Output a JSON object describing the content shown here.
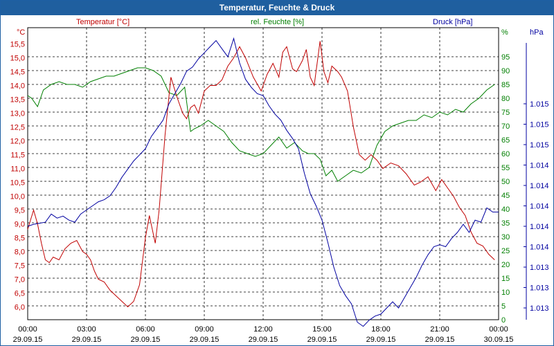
{
  "chart_data": {
    "type": "line",
    "title": "Temperatur, Feuchte & Druck",
    "series": [
      {
        "name": "Temperatur [°C]",
        "unit": "°C",
        "color": "#c00000",
        "axis": "left",
        "x_hours": [
          0,
          0.3,
          0.5,
          0.7,
          0.9,
          1.1,
          1.3,
          1.6,
          1.9,
          2.2,
          2.5,
          2.8,
          3.0,
          3.2,
          3.4,
          3.6,
          3.9,
          4.2,
          4.5,
          4.8,
          5.1,
          5.4,
          5.7,
          6.0,
          6.2,
          6.5,
          6.7,
          7.0,
          7.3,
          7.6,
          7.9,
          8.1,
          8.3,
          8.5,
          8.7,
          9.0,
          9.3,
          9.6,
          9.9,
          10.2,
          10.5,
          10.8,
          11.1,
          11.5,
          11.9,
          12.2,
          12.5,
          12.8,
          13.0,
          13.2,
          13.5,
          13.7,
          14.0,
          14.2,
          14.4,
          14.6,
          14.9,
          15.1,
          15.3,
          15.5,
          15.8,
          16.0,
          16.3,
          16.6,
          16.9,
          17.2,
          17.5,
          17.8,
          18.1,
          18.5,
          18.9,
          19.3,
          19.7,
          20.0,
          20.4,
          20.8,
          21.1,
          21.4,
          21.7,
          22.0,
          22.3,
          22.6,
          22.9,
          23.2,
          23.5,
          23.8
        ],
        "values": [
          8.8,
          9.5,
          9.0,
          8.3,
          7.7,
          7.6,
          7.8,
          7.7,
          8.1,
          8.3,
          8.4,
          8.0,
          7.9,
          7.7,
          7.3,
          7.0,
          6.9,
          6.6,
          6.4,
          6.2,
          6.0,
          6.2,
          6.8,
          8.5,
          9.3,
          8.3,
          9.5,
          12.2,
          14.3,
          13.6,
          13.0,
          12.8,
          13.2,
          13.3,
          13.0,
          13.8,
          14.0,
          14.0,
          14.2,
          14.7,
          15.0,
          15.4,
          15.0,
          14.3,
          13.8,
          14.4,
          14.8,
          14.3,
          15.2,
          15.4,
          14.6,
          14.5,
          14.9,
          15.3,
          14.3,
          14.0,
          15.6,
          14.5,
          14.1,
          14.7,
          14.5,
          14.3,
          13.8,
          12.5,
          11.5,
          11.3,
          11.5,
          11.3,
          11.0,
          11.2,
          11.1,
          10.8,
          10.4,
          10.5,
          10.7,
          10.2,
          10.6,
          10.3,
          10.0,
          9.6,
          9.3,
          8.7,
          8.3,
          8.2,
          7.9,
          7.7
        ]
      },
      {
        "name": "rel. Feuchte [%]",
        "unit": "%",
        "color": "#007f00",
        "axis": "right1",
        "x_hours": [
          0,
          0.2,
          0.5,
          0.8,
          1.2,
          1.6,
          2.0,
          2.4,
          2.8,
          3.2,
          3.6,
          4.0,
          4.4,
          4.8,
          5.2,
          5.6,
          6.0,
          6.4,
          6.8,
          7.2,
          7.6,
          8.0,
          8.3,
          8.5,
          8.8,
          9.2,
          9.6,
          10.0,
          10.4,
          10.8,
          11.2,
          11.6,
          12.0,
          12.4,
          12.8,
          13.2,
          13.6,
          14.0,
          14.3,
          14.6,
          14.9,
          15.2,
          15.5,
          15.8,
          16.2,
          16.6,
          17.0,
          17.4,
          17.8,
          18.2,
          18.6,
          19.0,
          19.4,
          19.8,
          20.2,
          20.6,
          21.0,
          21.4,
          21.8,
          22.2,
          22.6,
          23.0,
          23.4,
          23.8
        ],
        "values": [
          81,
          80,
          77,
          83,
          85,
          86,
          85,
          85,
          84,
          86,
          87,
          88,
          88,
          89,
          90,
          91,
          91,
          90,
          88,
          82,
          81,
          84,
          68,
          69,
          70,
          72,
          70,
          68,
          64,
          61,
          60,
          59,
          60,
          63,
          66,
          62,
          64,
          61,
          60,
          60,
          58,
          52,
          54,
          50,
          52,
          54,
          53,
          55,
          63,
          68,
          70,
          71,
          72,
          72,
          74,
          73,
          75,
          74,
          76,
          75,
          78,
          80,
          83,
          85
        ]
      },
      {
        "name": "Druck [hPa]",
        "unit": "hPa",
        "color": "#0000a0",
        "axis": "right2",
        "x_hours": [
          0,
          0.3,
          0.6,
          0.9,
          1.2,
          1.5,
          1.8,
          2.1,
          2.4,
          2.7,
          3.0,
          3.3,
          3.6,
          3.9,
          4.2,
          4.5,
          4.8,
          5.1,
          5.4,
          5.7,
          6.0,
          6.3,
          6.6,
          6.9,
          7.2,
          7.5,
          7.8,
          8.1,
          8.4,
          8.7,
          9.0,
          9.3,
          9.6,
          9.9,
          10.2,
          10.5,
          10.8,
          11.1,
          11.4,
          11.7,
          12.0,
          12.3,
          12.6,
          12.9,
          13.2,
          13.5,
          13.8,
          14.1,
          14.4,
          14.7,
          15.0,
          15.3,
          15.6,
          15.9,
          16.2,
          16.5,
          16.8,
          17.1,
          17.4,
          17.7,
          18.0,
          18.3,
          18.6,
          18.9,
          19.2,
          19.5,
          19.8,
          20.1,
          20.4,
          20.7,
          21.0,
          21.3,
          21.6,
          21.9,
          22.2,
          22.5,
          22.8,
          23.1,
          23.4,
          23.7,
          24.0
        ],
        "pixel_level": [
          0,
          0.1,
          0.15,
          0.2,
          0.6,
          0.4,
          0.5,
          0.3,
          0.2,
          0.6,
          0.8,
          1.0,
          1.2,
          1.3,
          1.5,
          1.9,
          2.4,
          2.8,
          3.2,
          3.5,
          3.8,
          4.4,
          4.8,
          5.2,
          6.0,
          6.5,
          7.0,
          7.6,
          7.8,
          8.2,
          8.5,
          8.8,
          9.1,
          8.7,
          8.3,
          9.2,
          8.0,
          7.2,
          6.8,
          6.5,
          6.4,
          5.9,
          5.5,
          5.2,
          4.7,
          4.3,
          3.8,
          2.6,
          1.6,
          1.0,
          0.3,
          -0.8,
          -2.0,
          -2.9,
          -3.4,
          -3.8,
          -4.7,
          -4.9,
          -4.6,
          -4.4,
          -4.3,
          -4.0,
          -3.7,
          -4.0,
          -3.5,
          -3.0,
          -2.5,
          -1.9,
          -1.4,
          -1.0,
          -0.9,
          -1.0,
          -0.6,
          -0.3,
          0.1,
          -0.3,
          0.3,
          0.2,
          0.9,
          0.7,
          0.7
        ]
      }
    ],
    "x_axis": {
      "range_hours": [
        0,
        24
      ],
      "tick_labels": [
        {
          "time": "00:00",
          "date": "29.09.15"
        },
        {
          "time": "03:00",
          "date": "29.09.15"
        },
        {
          "time": "06:00",
          "date": "29.09.15"
        },
        {
          "time": "09:00",
          "date": "29.09.15"
        },
        {
          "time": "12:00",
          "date": "29.09.15"
        },
        {
          "time": "15:00",
          "date": "29.09.15"
        },
        {
          "time": "18:00",
          "date": "29.09.15"
        },
        {
          "time": "21:00",
          "date": "29.09.15"
        },
        {
          "time": "00:00",
          "date": "30.09.15"
        }
      ]
    },
    "y_left": {
      "label": "°C",
      "series_label": "Temperatur [°C]",
      "color": "#c00000",
      "ylim": [
        5.6,
        16.0
      ],
      "ticks": [
        "6,0",
        "6,5",
        "7,0",
        "7,5",
        "8,0",
        "8,5",
        "9,0",
        "9,5",
        "10,0",
        "10,5",
        "11,0",
        "11,5",
        "12,0",
        "12,5",
        "13,0",
        "13,5",
        "14,0",
        "14,5",
        "15,0",
        "15,5"
      ]
    },
    "y_right1": {
      "label": "%",
      "series_label": "rel. Feuchte [%]",
      "color": "#007f00",
      "ylim": [
        0,
        100
      ],
      "ticks": [
        "0",
        "5",
        "10",
        "15",
        "20",
        "25",
        "30",
        "35",
        "40",
        "45",
        "50",
        "55",
        "60",
        "65",
        "70",
        "75",
        "80",
        "85",
        "90",
        "95"
      ]
    },
    "y_right2": {
      "label": "hPa",
      "series_label": "Druck [hPa]",
      "color": "#0000a0",
      "ticks": [
        "1.013",
        "1.013",
        "1.013",
        "1.014",
        "1.014",
        "1.014",
        "1.014",
        "1.014",
        "1.015",
        "1.015",
        "1.015"
      ]
    },
    "grid": true
  }
}
